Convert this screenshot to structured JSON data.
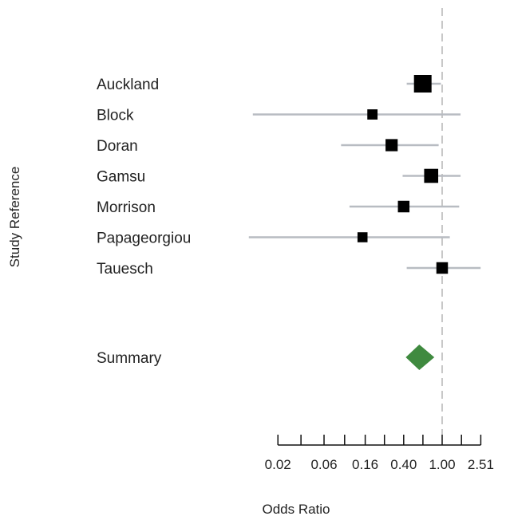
{
  "chart_data": {
    "type": "forest",
    "xlabel": "Odds Ratio",
    "ylabel": "Study Reference",
    "x_scale": "log",
    "x_ticks": [
      "0.02",
      "0.06",
      "0.16",
      "0.40",
      "1.00",
      "2.51"
    ],
    "reference_line": 1.0,
    "studies": [
      {
        "name": "Auckland",
        "or": 0.63,
        "lower": 0.43,
        "upper": 0.97,
        "weight": 4.0
      },
      {
        "name": "Block",
        "or": 0.19,
        "lower": 0.011,
        "upper": 1.55,
        "weight": 0.6
      },
      {
        "name": "Doran",
        "or": 0.3,
        "lower": 0.09,
        "upper": 0.92,
        "weight": 1.2
      },
      {
        "name": "Gamsu",
        "or": 0.77,
        "lower": 0.39,
        "upper": 1.55,
        "weight": 2.0
      },
      {
        "name": "Morrison",
        "or": 0.4,
        "lower": 0.11,
        "upper": 1.5,
        "weight": 1.0
      },
      {
        "name": "Papageorgiou",
        "or": 0.15,
        "lower": 0.01,
        "upper": 1.2,
        "weight": 0.55
      },
      {
        "name": "Tauesch",
        "or": 1.0,
        "lower": 0.43,
        "upper": 2.5,
        "weight": 1.0
      }
    ],
    "summary": {
      "name": "Summary",
      "or": 0.58,
      "lower": 0.42,
      "upper": 0.83
    },
    "colors": {
      "ci_line": "#b8bcc2",
      "box": "#000000",
      "summary": "#3f8a3f",
      "reference": "#c8c8c8"
    }
  }
}
